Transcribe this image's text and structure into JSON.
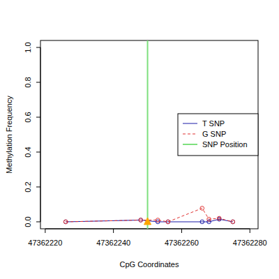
{
  "chart_data": {
    "type": "line",
    "x_label": "CpG Coordinates",
    "y_label": "Methylation Frequency",
    "x": [
      47362226,
      47362248,
      47362253,
      47362256,
      47362266,
      47362268,
      47362271,
      47362275
    ],
    "series": [
      {
        "name": "T SNP",
        "color": "#1a1aa6",
        "line_style": "solid",
        "marker": "circle",
        "values": [
          0.0,
          0.01,
          0.0,
          0.0,
          0.0,
          0.0,
          0.015,
          0.0
        ]
      },
      {
        "name": "G SNP",
        "color": "#e03030",
        "line_style": "dashed",
        "marker": "circle",
        "values": [
          0.0,
          0.01,
          0.01,
          0.0,
          0.078,
          0.015,
          0.02,
          0.0
        ]
      }
    ],
    "snp": {
      "name": "SNP Position",
      "color": "#7ee07e",
      "x": 47362250,
      "y": 0
    },
    "xlim": [
      47362218.6,
      47362282.4
    ],
    "ylim": [
      -0.04,
      1.04
    ],
    "xticks": [
      47362220,
      47362240,
      47362260,
      47362280
    ],
    "yticks": [
      {
        "value": 0,
        "label": "0.0"
      },
      0.2,
      0.4,
      0.6,
      0.8,
      {
        "value": 1,
        "label": "1.0"
      }
    ],
    "legend": "right"
  }
}
